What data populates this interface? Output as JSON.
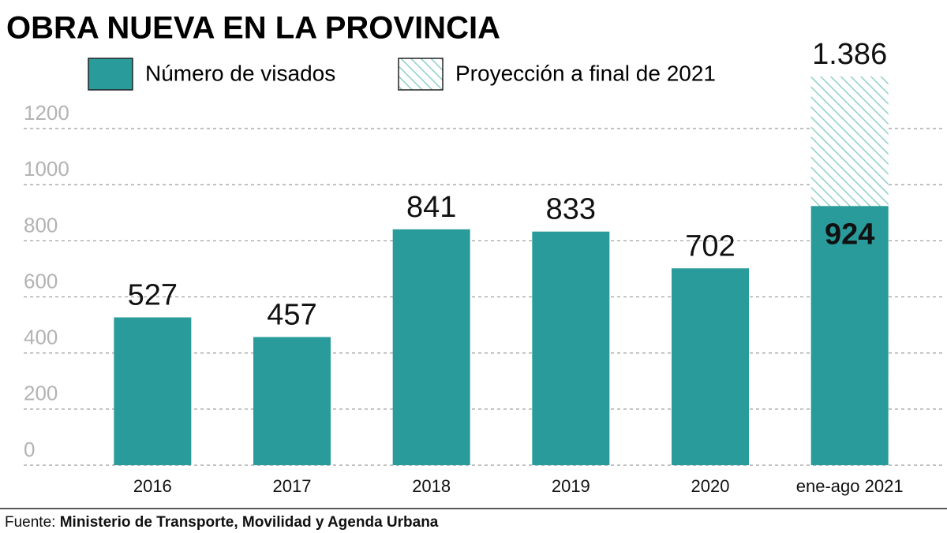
{
  "chart_data": {
    "type": "bar",
    "title": "OBRA NUEVA EN LA PROVINCIA",
    "categories": [
      "2016",
      "2017",
      "2018",
      "2019",
      "2020",
      "ene-ago 2021"
    ],
    "series": [
      {
        "name": "Proyección a final de 2021",
        "color": "#8fd0c8",
        "hatched": true,
        "values": [
          null,
          null,
          null,
          null,
          null,
          1386
        ],
        "value_labels": [
          null,
          null,
          null,
          null,
          null,
          "1.386"
        ],
        "label_color": "#3bb39b"
      },
      {
        "name": "Número de visados",
        "color": "#2a9b9b",
        "values": [
          527,
          457,
          841,
          833,
          702,
          924
        ]
      }
    ],
    "ylim": [
      0,
      1400
    ],
    "yticks": [
      0,
      200,
      400,
      600,
      800,
      1000,
      1200
    ],
    "grid": true,
    "source_label": "Fuente:",
    "source": "Ministerio de Transporte, Movilidad y Agenda Urbana"
  }
}
